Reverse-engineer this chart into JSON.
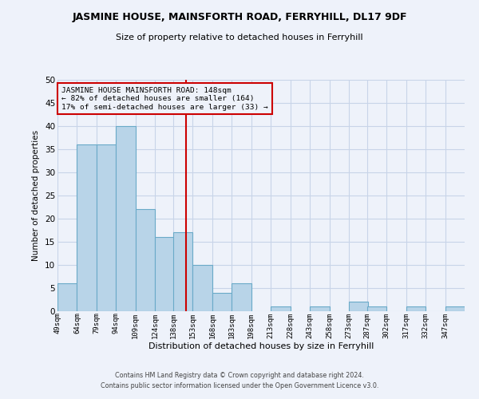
{
  "title": "JASMINE HOUSE, MAINSFORTH ROAD, FERRYHILL, DL17 9DF",
  "subtitle": "Size of property relative to detached houses in Ferryhill",
  "xlabel": "Distribution of detached houses by size in Ferryhill",
  "ylabel": "Number of detached properties",
  "bar_labels": [
    "49sqm",
    "64sqm",
    "79sqm",
    "94sqm",
    "109sqm",
    "124sqm",
    "138sqm",
    "153sqm",
    "168sqm",
    "183sqm",
    "198sqm",
    "213sqm",
    "228sqm",
    "243sqm",
    "258sqm",
    "273sqm",
    "287sqm",
    "302sqm",
    "317sqm",
    "332sqm",
    "347sqm"
  ],
  "bar_values": [
    6,
    36,
    36,
    40,
    22,
    16,
    17,
    10,
    4,
    6,
    0,
    1,
    0,
    1,
    0,
    2,
    1,
    0,
    1,
    0,
    1
  ],
  "bin_edges": [
    49,
    64,
    79,
    94,
    109,
    124,
    138,
    153,
    168,
    183,
    198,
    213,
    228,
    243,
    258,
    273,
    287,
    302,
    317,
    332,
    347,
    362
  ],
  "bar_color": "#b8d4e8",
  "bar_edge_color": "#6aaac8",
  "vline_x": 148,
  "vline_color": "#cc0000",
  "annotation_line1": "JASMINE HOUSE MAINSFORTH ROAD: 148sqm",
  "annotation_line2": "← 82% of detached houses are smaller (164)",
  "annotation_line3": "17% of semi-detached houses are larger (33) →",
  "annotation_box_color": "#cc0000",
  "ylim": [
    0,
    50
  ],
  "yticks": [
    0,
    5,
    10,
    15,
    20,
    25,
    30,
    35,
    40,
    45,
    50
  ],
  "grid_color": "#c8d4e8",
  "background_color": "#eef2fa",
  "footer_line1": "Contains HM Land Registry data © Crown copyright and database right 2024.",
  "footer_line2": "Contains public sector information licensed under the Open Government Licence v3.0."
}
